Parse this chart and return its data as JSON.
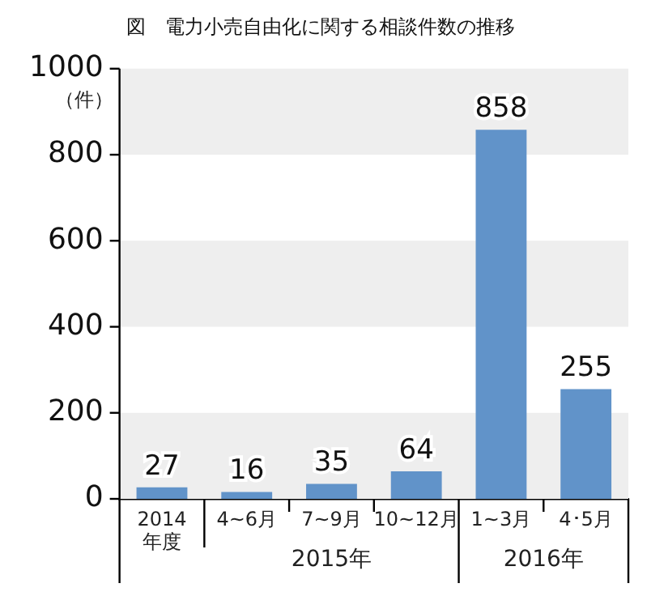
{
  "chart_data": {
    "type": "bar",
    "title": "図　電力小売自由化に関する相談件数の推移",
    "ylabel": "（件）",
    "categories": [
      "2014\n年度",
      "4~6月",
      "7~9月",
      "10~12月",
      "1~3月",
      "4･5月"
    ],
    "values": [
      27,
      16,
      35,
      64,
      858,
      255
    ],
    "color": "#6193c9",
    "ylim": [
      0,
      1000
    ],
    "yticks": [
      0,
      200,
      400,
      600,
      800,
      1000
    ],
    "bands": [
      {
        "axis": "y",
        "from": 0,
        "to": 200,
        "color": "#eeeeee"
      },
      {
        "axis": "y",
        "from": 400,
        "to": 600,
        "color": "#eeeeee"
      },
      {
        "axis": "y",
        "from": 800,
        "to": 1000,
        "color": "#eeeeee"
      }
    ],
    "data_labels": true,
    "legend": false,
    "annotations": [
      "2015年",
      "2016年"
    ]
  }
}
